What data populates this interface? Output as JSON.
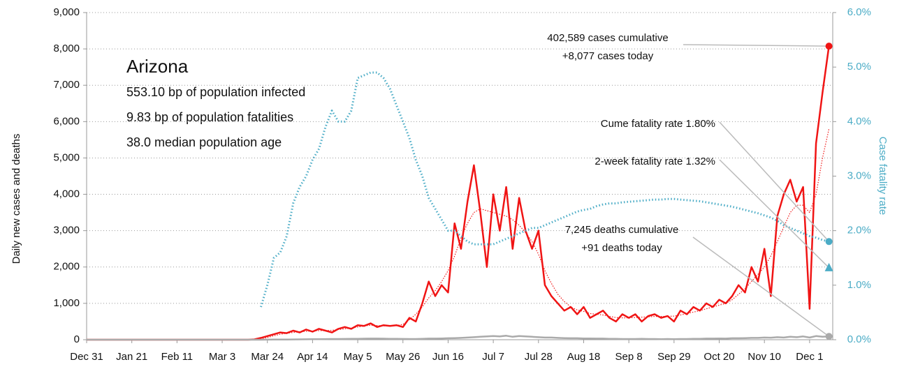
{
  "chart_data": {
    "type": "line",
    "info": {
      "title": "Arizona",
      "lines": [
        "553.10 bp of population infected",
        "9.83 bp of population fatalities",
        "38.0 median population age"
      ]
    },
    "ylabel": "Daily new cases and deaths",
    "y2label": "Case fatality rate",
    "categories": [
      "Dec 31",
      null,
      null,
      null,
      null,
      null,
      null,
      "Jan 21",
      null,
      null,
      null,
      null,
      null,
      null,
      "Feb 11",
      null,
      null,
      null,
      null,
      null,
      null,
      "Mar 3",
      null,
      null,
      null,
      null,
      null,
      null,
      "Mar 24",
      null,
      null,
      null,
      null,
      null,
      null,
      "Apr 14",
      null,
      null,
      null,
      null,
      null,
      null,
      "May 5",
      null,
      null,
      null,
      null,
      null,
      null,
      "May 26",
      null,
      null,
      null,
      null,
      null,
      null,
      "Jun 16",
      null,
      null,
      null,
      null,
      null,
      null,
      "Jul 7",
      null,
      null,
      null,
      null,
      null,
      null,
      "Jul 28",
      null,
      null,
      null,
      null,
      null,
      null,
      "Aug 18",
      null,
      null,
      null,
      null,
      null,
      null,
      "Sep 8",
      null,
      null,
      null,
      null,
      null,
      null,
      "Sep 29",
      null,
      null,
      null,
      null,
      null,
      null,
      "Oct 20",
      null,
      null,
      null,
      null,
      null,
      null,
      "Nov 10",
      null,
      null,
      null,
      null,
      null,
      null,
      "Dec 1",
      null,
      null,
      null
    ],
    "ylim": [
      0,
      9000
    ],
    "yticks": [
      {
        "value": 0,
        "label": "0"
      },
      {
        "value": 1000,
        "label": "1,000"
      },
      {
        "value": 2000,
        "label": "2,000"
      },
      {
        "value": 3000,
        "label": "3,000"
      },
      {
        "value": 4000,
        "label": "4,000"
      },
      {
        "value": 5000,
        "label": "5,000"
      },
      {
        "value": 6000,
        "label": "6,000"
      },
      {
        "value": 7000,
        "label": "7,000"
      },
      {
        "value": 8000,
        "label": "8,000"
      },
      {
        "value": 9000,
        "label": "9,000"
      }
    ],
    "y2lim": [
      0,
      6
    ],
    "y2ticks": [
      {
        "value": 0,
        "label": "0.0%"
      },
      {
        "value": 1,
        "label": "1.0%"
      },
      {
        "value": 2,
        "label": "2.0%"
      },
      {
        "value": 3,
        "label": "3.0%"
      },
      {
        "value": 4,
        "label": "4.0%"
      },
      {
        "value": 5,
        "label": "5.0%"
      },
      {
        "value": 6,
        "label": "6.0%"
      }
    ],
    "grid": true,
    "series": [
      {
        "color": "#f01414",
        "style": "solid",
        "width": 2.5,
        "values": [
          0,
          0,
          0,
          0,
          0,
          0,
          0,
          0,
          0,
          0,
          0,
          0,
          0,
          0,
          0,
          0,
          0,
          0,
          0,
          0,
          0,
          0,
          0,
          0,
          0,
          0,
          10,
          50,
          100,
          150,
          200,
          180,
          250,
          200,
          280,
          220,
          300,
          250,
          200,
          300,
          350,
          300,
          400,
          380,
          450,
          350,
          400,
          380,
          400,
          350,
          600,
          500,
          1000,
          1600,
          1200,
          1500,
          1300,
          3200,
          2500,
          3800,
          4800,
          3500,
          2000,
          4000,
          3000,
          4200,
          2500,
          3900,
          3000,
          2500,
          3000,
          1500,
          1200,
          1000,
          800,
          900,
          700,
          900,
          600,
          700,
          800,
          600,
          500,
          700,
          600,
          700,
          500,
          650,
          700,
          600,
          650,
          500,
          800,
          700,
          900,
          800,
          1000,
          900,
          1100,
          1000,
          1200,
          1500,
          1300,
          2000,
          1600,
          2500,
          1200,
          3400,
          4000,
          4400,
          3800,
          4200,
          850,
          5400,
          6800,
          8077
        ]
      },
      {
        "color": "#f01414",
        "style": "dotted",
        "width": 1.2,
        "values": [
          0,
          0,
          0,
          0,
          0,
          0,
          0,
          0,
          0,
          0,
          0,
          0,
          0,
          0,
          0,
          0,
          0,
          0,
          0,
          0,
          0,
          0,
          0,
          0,
          0,
          0,
          5,
          25,
          60,
          110,
          150,
          180,
          200,
          220,
          230,
          240,
          250,
          250,
          260,
          280,
          300,
          320,
          350,
          380,
          400,
          390,
          380,
          380,
          390,
          420,
          550,
          700,
          900,
          1150,
          1350,
          1600,
          1900,
          2300,
          2800,
          3200,
          3500,
          3600,
          3550,
          3500,
          3450,
          3400,
          3300,
          3150,
          2950,
          2700,
          2350,
          1900,
          1550,
          1250,
          1050,
          900,
          820,
          780,
          720,
          700,
          680,
          640,
          610,
          600,
          600,
          610,
          620,
          630,
          640,
          640,
          640,
          650,
          680,
          720,
          760,
          800,
          850,
          900,
          950,
          1000,
          1100,
          1250,
          1400,
          1600,
          1800,
          2000,
          2300,
          2700,
          3100,
          3500,
          3700,
          3700,
          3500,
          4000,
          5000,
          5800
        ]
      },
      {
        "color": "#aaaaaa",
        "style": "solid",
        "width": 2.5,
        "values": [
          0,
          0,
          0,
          0,
          0,
          0,
          0,
          0,
          0,
          0,
          0,
          0,
          0,
          0,
          0,
          0,
          0,
          0,
          0,
          0,
          0,
          0,
          0,
          0,
          0,
          0,
          0,
          0,
          2,
          3,
          5,
          6,
          8,
          10,
          12,
          15,
          15,
          18,
          20,
          20,
          22,
          25,
          25,
          28,
          30,
          30,
          28,
          25,
          25,
          22,
          20,
          20,
          25,
          30,
          30,
          35,
          40,
          45,
          50,
          60,
          70,
          80,
          90,
          100,
          90,
          110,
          80,
          100,
          90,
          80,
          70,
          60,
          60,
          50,
          45,
          40,
          40,
          35,
          35,
          30,
          30,
          25,
          25,
          20,
          20,
          20,
          25,
          20,
          20,
          15,
          20,
          15,
          20,
          20,
          25,
          25,
          30,
          30,
          35,
          30,
          40,
          40,
          45,
          50,
          50,
          60,
          55,
          70,
          60,
          80,
          70,
          90,
          60,
          100,
          80,
          91
        ]
      },
      {
        "color": "#4bacc6",
        "style": "dotted",
        "width": 3,
        "axis": "y2",
        "values": [
          null,
          null,
          null,
          null,
          null,
          null,
          null,
          null,
          null,
          null,
          null,
          null,
          null,
          null,
          null,
          null,
          null,
          null,
          null,
          null,
          null,
          null,
          null,
          null,
          null,
          null,
          null,
          0.6,
          1.0,
          1.5,
          1.6,
          1.9,
          2.5,
          2.8,
          3.0,
          3.3,
          3.5,
          3.9,
          4.2,
          4.0,
          4.0,
          4.2,
          4.8,
          4.85,
          4.9,
          4.9,
          4.8,
          4.6,
          4.3,
          4.0,
          3.7,
          3.3,
          3.0,
          2.6,
          2.4,
          2.2,
          2.0,
          2.0,
          1.9,
          1.8,
          1.75,
          1.75,
          1.75,
          1.75,
          1.8,
          1.85,
          1.9,
          1.95,
          2.0,
          2.05,
          2.05,
          2.1,
          2.15,
          2.2,
          2.25,
          2.3,
          2.35,
          2.38,
          2.4,
          2.45,
          2.48,
          2.5,
          2.5,
          2.52,
          2.53,
          2.54,
          2.55,
          2.56,
          2.57,
          2.57,
          2.58,
          2.58,
          2.57,
          2.56,
          2.55,
          2.54,
          2.52,
          2.5,
          2.48,
          2.46,
          2.44,
          2.41,
          2.38,
          2.35,
          2.32,
          2.28,
          2.24,
          2.18,
          2.1,
          2.05,
          2.0,
          1.95,
          1.9,
          1.87,
          1.83,
          1.8
        ]
      }
    ],
    "annotations": [
      {
        "lines": [
          "402,589 cases cumulative",
          "+8,077 cases today"
        ],
        "value": 8077,
        "axis": "y",
        "marker": "circle",
        "color": "#f01414"
      },
      {
        "lines": [
          "Cume fatality rate 1.80%"
        ],
        "value": 1.8,
        "axis": "y2",
        "marker": "circle",
        "color": "#4bacc6"
      },
      {
        "lines": [
          "2-week fatality rate 1.32%"
        ],
        "value": 1.32,
        "axis": "y2",
        "marker": "triangle",
        "color": "#4bacc6"
      },
      {
        "lines": [
          "7,245 deaths cumulative",
          "+91 deaths today"
        ],
        "value": 91,
        "axis": "y",
        "marker": "circle",
        "color": "#aaaaaa"
      }
    ]
  }
}
